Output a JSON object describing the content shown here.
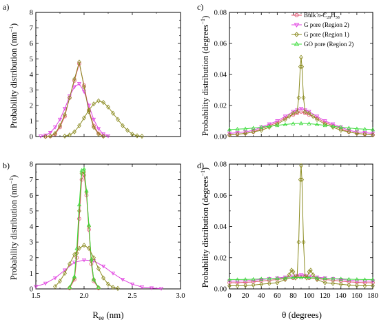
{
  "figure": {
    "panel_labels": [
      "a)",
      "b)",
      "c)",
      "d)"
    ],
    "ylabel_ree": "Probability distribution (nm",
    "ylabel_ree_sup": "−1",
    "ylabel_ree_tail": ")",
    "ylabel_theta": "Probability distribution (degrees",
    "ylabel_theta_sup": "−1",
    "ylabel_theta_tail": ")",
    "xlabel_ree_main": "R",
    "xlabel_ree_sub": "ee",
    "xlabel_ree_tail": " (nm)",
    "xlabel_theta": "θ (degrees)",
    "legend": [
      {
        "label": "Bulk n-C28H58",
        "color": "#e0506e"
      },
      {
        "label": "G pore (Region 2)",
        "color": "#e040e0"
      },
      {
        "label": "G pore (Region 1)",
        "color": "#8a8a1e"
      },
      {
        "label": "GO pore (Region 2)",
        "color": "#3cdc3c"
      }
    ],
    "legend_parts": {
      "bulk_pre": "Bulk ",
      "bulk_n": "n",
      "bulk_mid": "-C",
      "bulk_sub1": "28",
      "bulk_h": "H",
      "bulk_sub2": "58"
    }
  },
  "chart_data": [
    {
      "type": "line",
      "panel": "a)",
      "xlim": [
        1.5,
        3.0
      ],
      "ylim": [
        0,
        8
      ],
      "x_ticks": [
        "1.5",
        "2.0",
        "2.5",
        "3.0"
      ],
      "y_ticks": [
        "0",
        "1",
        "2",
        "3",
        "4",
        "5",
        "6",
        "7",
        "8"
      ],
      "show_x_ticklabels": false,
      "series": [
        {
          "name": "Bulk n-C28H58",
          "color": "#e0506e",
          "marker": "circle",
          "x": [
            1.6,
            1.65,
            1.7,
            1.75,
            1.8,
            1.85,
            1.9,
            1.95,
            2.0,
            2.05,
            2.1,
            2.15,
            2.2
          ],
          "y": [
            0,
            0.02,
            0.15,
            0.6,
            1.3,
            2.5,
            3.6,
            4.7,
            3.3,
            1.7,
            0.7,
            0.2,
            0.03
          ]
        },
        {
          "name": "G pore (Region 2)",
          "color": "#e040e0",
          "marker": "triangle-down",
          "x": [
            1.55,
            1.6,
            1.65,
            1.7,
            1.75,
            1.8,
            1.85,
            1.9,
            1.95,
            2.0,
            2.05,
            2.1,
            2.15,
            2.2,
            2.25
          ],
          "y": [
            0.02,
            0.08,
            0.25,
            0.6,
            1.1,
            1.8,
            2.6,
            3.2,
            3.4,
            2.9,
            2.0,
            1.1,
            0.5,
            0.15,
            0.03
          ]
        },
        {
          "name": "G pore (Region 1)",
          "color": "#8a8a1e",
          "marker": "diamond",
          "x": [
            1.6,
            1.65,
            1.7,
            1.75,
            1.8,
            1.85,
            1.9,
            1.95,
            2.0,
            2.05,
            2.1,
            2.15,
            2.2
          ],
          "y": [
            0,
            0.03,
            0.2,
            0.7,
            1.4,
            2.5,
            3.7,
            4.8,
            3.2,
            1.6,
            0.6,
            0.15,
            0.02
          ]
        },
        {
          "name": "G pore (Region 1) wide",
          "color": "#8a8a1e",
          "marker": "diamond",
          "x": [
            1.8,
            1.85,
            1.9,
            1.95,
            2.0,
            2.05,
            2.1,
            2.15,
            2.2,
            2.25,
            2.3,
            2.35,
            2.4,
            2.45,
            2.5,
            2.55,
            2.6
          ],
          "y": [
            0.03,
            0.1,
            0.3,
            0.7,
            1.2,
            1.7,
            2.1,
            2.3,
            2.2,
            1.9,
            1.5,
            1.1,
            0.7,
            0.4,
            0.15,
            0.05,
            0.02
          ]
        }
      ]
    },
    {
      "type": "line",
      "panel": "b)",
      "xlim": [
        1.5,
        3.0
      ],
      "ylim": [
        0,
        8
      ],
      "x_ticks": [
        "1.5",
        "2.0",
        "2.5",
        "3.0"
      ],
      "y_ticks": [
        "0",
        "1",
        "2",
        "3",
        "4",
        "5",
        "6",
        "7",
        "8"
      ],
      "show_x_ticklabels": true,
      "series": [
        {
          "name": "Bulk n-C28H58",
          "color": "#e0506e",
          "marker": "circle",
          "x": [
            1.85,
            1.9,
            1.925,
            1.95,
            1.975,
            2.0,
            2.025,
            2.05,
            2.075,
            2.1,
            2.15
          ],
          "y": [
            0.05,
            0.6,
            2.0,
            4.5,
            7.0,
            7.3,
            6.0,
            3.8,
            1.6,
            0.5,
            0.05
          ]
        },
        {
          "name": "G pore (Region 2)",
          "color": "#e040e0",
          "marker": "triangle-down",
          "x": [
            1.5,
            1.6,
            1.7,
            1.8,
            1.9,
            2.0,
            2.1,
            2.2,
            2.3,
            2.4,
            2.5,
            2.6,
            2.7,
            2.8
          ],
          "y": [
            0.15,
            0.35,
            0.7,
            1.2,
            1.7,
            1.85,
            1.8,
            1.45,
            1.0,
            0.6,
            0.3,
            0.12,
            0.05,
            0.02
          ]
        },
        {
          "name": "G pore (Region 1)",
          "color": "#8a8a1e",
          "marker": "diamond",
          "x": [
            1.85,
            1.9,
            1.925,
            1.95,
            1.975,
            2.0,
            2.025,
            2.05,
            2.075,
            2.1,
            2.15
          ],
          "y": [
            0.08,
            0.7,
            2.3,
            5.0,
            7.4,
            7.5,
            6.2,
            4.0,
            1.8,
            0.6,
            0.08
          ]
        },
        {
          "name": "GO pore (Region 2)",
          "color": "#3cdc3c",
          "marker": "triangle-up",
          "x": [
            1.85,
            1.9,
            1.925,
            1.95,
            1.975,
            2.0,
            2.025,
            2.05,
            2.075,
            2.1,
            2.15
          ],
          "y": [
            0.1,
            0.8,
            2.6,
            5.4,
            7.6,
            7.7,
            6.3,
            4.1,
            1.9,
            0.6,
            0.1
          ]
        },
        {
          "name": "G pore (Region 1) wide",
          "color": "#8a8a1e",
          "marker": "diamond",
          "x": [
            1.7,
            1.75,
            1.8,
            1.85,
            1.9,
            1.95,
            2.0,
            2.05,
            2.1,
            2.15,
            2.2,
            2.25,
            2.3,
            2.35
          ],
          "y": [
            0.15,
            0.5,
            1.0,
            1.6,
            2.2,
            2.6,
            2.8,
            2.6,
            2.0,
            1.3,
            0.7,
            0.3,
            0.1,
            0.03
          ]
        }
      ]
    },
    {
      "type": "line",
      "panel": "c)",
      "xlim": [
        0,
        180
      ],
      "ylim": [
        0,
        0.08
      ],
      "x_ticks": [
        "0",
        "20",
        "40",
        "60",
        "80",
        "100",
        "120",
        "140",
        "160",
        "180"
      ],
      "y_ticks": [
        "0.00",
        "0.02",
        "0.04",
        "0.06",
        "0.08"
      ],
      "show_x_ticklabels": false,
      "series": [
        {
          "name": "Bulk n-C28H58",
          "color": "#e0506e",
          "marker": "circle",
          "x": [
            0,
            10,
            20,
            30,
            40,
            50,
            60,
            70,
            80,
            85,
            90,
            95,
            100,
            110,
            120,
            130,
            140,
            150,
            160,
            170,
            180
          ],
          "y": [
            0.001,
            0.0015,
            0.002,
            0.003,
            0.005,
            0.007,
            0.009,
            0.012,
            0.014,
            0.015,
            0.016,
            0.015,
            0.014,
            0.012,
            0.009,
            0.007,
            0.005,
            0.003,
            0.002,
            0.0015,
            0.001
          ]
        },
        {
          "name": "G pore (Region 2)",
          "color": "#e040e0",
          "marker": "triangle-down",
          "x": [
            0,
            10,
            20,
            30,
            40,
            50,
            60,
            70,
            80,
            85,
            90,
            95,
            100,
            110,
            120,
            130,
            140,
            150,
            160,
            170,
            180
          ],
          "y": [
            0.002,
            0.0025,
            0.003,
            0.004,
            0.006,
            0.008,
            0.01,
            0.013,
            0.016,
            0.017,
            0.018,
            0.017,
            0.016,
            0.013,
            0.01,
            0.008,
            0.006,
            0.004,
            0.003,
            0.0025,
            0.002
          ]
        },
        {
          "name": "G pore (Region 1)",
          "color": "#8a8a1e",
          "marker": "diamond",
          "x": [
            0,
            10,
            20,
            30,
            40,
            50,
            60,
            70,
            75,
            80,
            85,
            87,
            89,
            90,
            91,
            93,
            95,
            100,
            105,
            110,
            120,
            130,
            140,
            150,
            160,
            170,
            180
          ],
          "y": [
            0.001,
            0.0015,
            0.002,
            0.003,
            0.004,
            0.006,
            0.008,
            0.011,
            0.013,
            0.015,
            0.016,
            0.025,
            0.045,
            0.051,
            0.045,
            0.025,
            0.016,
            0.015,
            0.013,
            0.011,
            0.008,
            0.006,
            0.004,
            0.003,
            0.002,
            0.0015,
            0.001
          ]
        },
        {
          "name": "GO pore (Region 2)",
          "color": "#3cdc3c",
          "marker": "triangle-up",
          "x": [
            0,
            10,
            20,
            30,
            40,
            50,
            60,
            70,
            80,
            90,
            100,
            110,
            120,
            130,
            140,
            150,
            160,
            170,
            180
          ],
          "y": [
            0.0045,
            0.0048,
            0.005,
            0.0055,
            0.006,
            0.0066,
            0.0072,
            0.0078,
            0.0083,
            0.0085,
            0.0083,
            0.0078,
            0.0072,
            0.0066,
            0.006,
            0.0055,
            0.005,
            0.0048,
            0.0045
          ]
        }
      ]
    },
    {
      "type": "line",
      "panel": "d)",
      "xlim": [
        0,
        180
      ],
      "ylim": [
        0,
        0.08
      ],
      "x_ticks": [
        "0",
        "20",
        "40",
        "60",
        "80",
        "100",
        "120",
        "140",
        "160",
        "180"
      ],
      "y_ticks": [
        "0.00",
        "0.02",
        "0.04",
        "0.06",
        "0.08"
      ],
      "show_x_ticklabels": true,
      "series": [
        {
          "name": "Bulk n-C28H58",
          "color": "#e0506e",
          "marker": "circle",
          "x": [
            0,
            10,
            20,
            30,
            40,
            50,
            60,
            70,
            80,
            90,
            100,
            110,
            120,
            130,
            140,
            150,
            160,
            170,
            180
          ],
          "y": [
            0.004,
            0.004,
            0.0042,
            0.0045,
            0.005,
            0.0055,
            0.006,
            0.0065,
            0.007,
            0.0075,
            0.007,
            0.0065,
            0.006,
            0.0055,
            0.005,
            0.0045,
            0.0042,
            0.004,
            0.004
          ]
        },
        {
          "name": "G pore (Region 2)",
          "color": "#e040e0",
          "marker": "triangle-down",
          "x": [
            0,
            10,
            20,
            30,
            40,
            50,
            60,
            70,
            80,
            85,
            90,
            95,
            100,
            110,
            120,
            130,
            140,
            150,
            160,
            170,
            180
          ],
          "y": [
            0.005,
            0.005,
            0.0052,
            0.0055,
            0.006,
            0.0065,
            0.007,
            0.0075,
            0.008,
            0.0085,
            0.009,
            0.0085,
            0.008,
            0.0075,
            0.007,
            0.0065,
            0.006,
            0.0055,
            0.0052,
            0.005,
            0.005
          ]
        },
        {
          "name": "G pore (Region 1)",
          "color": "#8a8a1e",
          "marker": "diamond",
          "x": [
            0,
            10,
            20,
            30,
            40,
            50,
            60,
            70,
            75,
            78,
            80,
            83,
            85,
            87,
            89,
            90,
            91,
            93,
            95,
            97,
            100,
            102,
            105,
            110,
            120,
            130,
            140,
            150,
            160,
            170,
            180
          ],
          "y": [
            0.002,
            0.002,
            0.0022,
            0.0025,
            0.003,
            0.0035,
            0.004,
            0.006,
            0.009,
            0.012,
            0.011,
            0.007,
            0.008,
            0.03,
            0.07,
            0.079,
            0.07,
            0.03,
            0.008,
            0.007,
            0.011,
            0.012,
            0.009,
            0.006,
            0.004,
            0.0035,
            0.003,
            0.0025,
            0.0022,
            0.002,
            0.002
          ]
        },
        {
          "name": "GO pore (Region 2)",
          "color": "#3cdc3c",
          "marker": "triangle-up",
          "x": [
            0,
            10,
            20,
            30,
            40,
            50,
            60,
            70,
            80,
            90,
            100,
            110,
            120,
            130,
            140,
            150,
            160,
            170,
            180
          ],
          "y": [
            0.006,
            0.006,
            0.0061,
            0.0062,
            0.0064,
            0.0066,
            0.0068,
            0.007,
            0.0072,
            0.0073,
            0.0072,
            0.007,
            0.0068,
            0.0066,
            0.0064,
            0.0062,
            0.0061,
            0.006,
            0.006
          ]
        }
      ]
    }
  ]
}
